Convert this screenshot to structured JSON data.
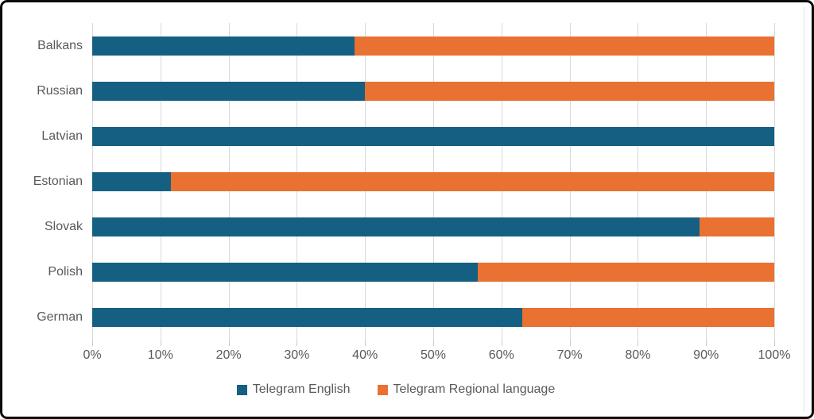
{
  "chart_data": {
    "type": "bar",
    "orientation": "horizontal",
    "stacked": true,
    "stacked_total": 100,
    "title": "",
    "xlabel": "",
    "ylabel": "",
    "categories": [
      "Balkans",
      "Russian",
      "Latvian",
      "Estonian",
      "Slovak",
      "Polish",
      "German"
    ],
    "series": [
      {
        "name": "Telegram English",
        "color": "#156082",
        "values": [
          38.5,
          40,
          100,
          11.5,
          89,
          56.5,
          63
        ]
      },
      {
        "name": "Telegram Regional language",
        "color": "#E97132",
        "values": [
          61.5,
          60,
          0,
          88.5,
          11,
          43.5,
          37
        ]
      }
    ],
    "x_axis": {
      "min": 0,
      "max": 100,
      "tick_step": 10,
      "tick_labels": [
        "0%",
        "10%",
        "20%",
        "30%",
        "40%",
        "50%",
        "60%",
        "70%",
        "80%",
        "90%",
        "100%"
      ]
    },
    "grid": "vertical",
    "legend_position": "bottom"
  },
  "legend": {
    "entries": [
      {
        "label": "Telegram English",
        "color": "#156082"
      },
      {
        "label": "Telegram Regional language",
        "color": "#E97132"
      }
    ]
  },
  "colors": {
    "axis_text": "#595959",
    "gridline": "#D9D9D9",
    "series_blue": "#156082",
    "series_orange": "#E97132",
    "frame_border": "#0b0b0b",
    "background": "#ffffff"
  }
}
